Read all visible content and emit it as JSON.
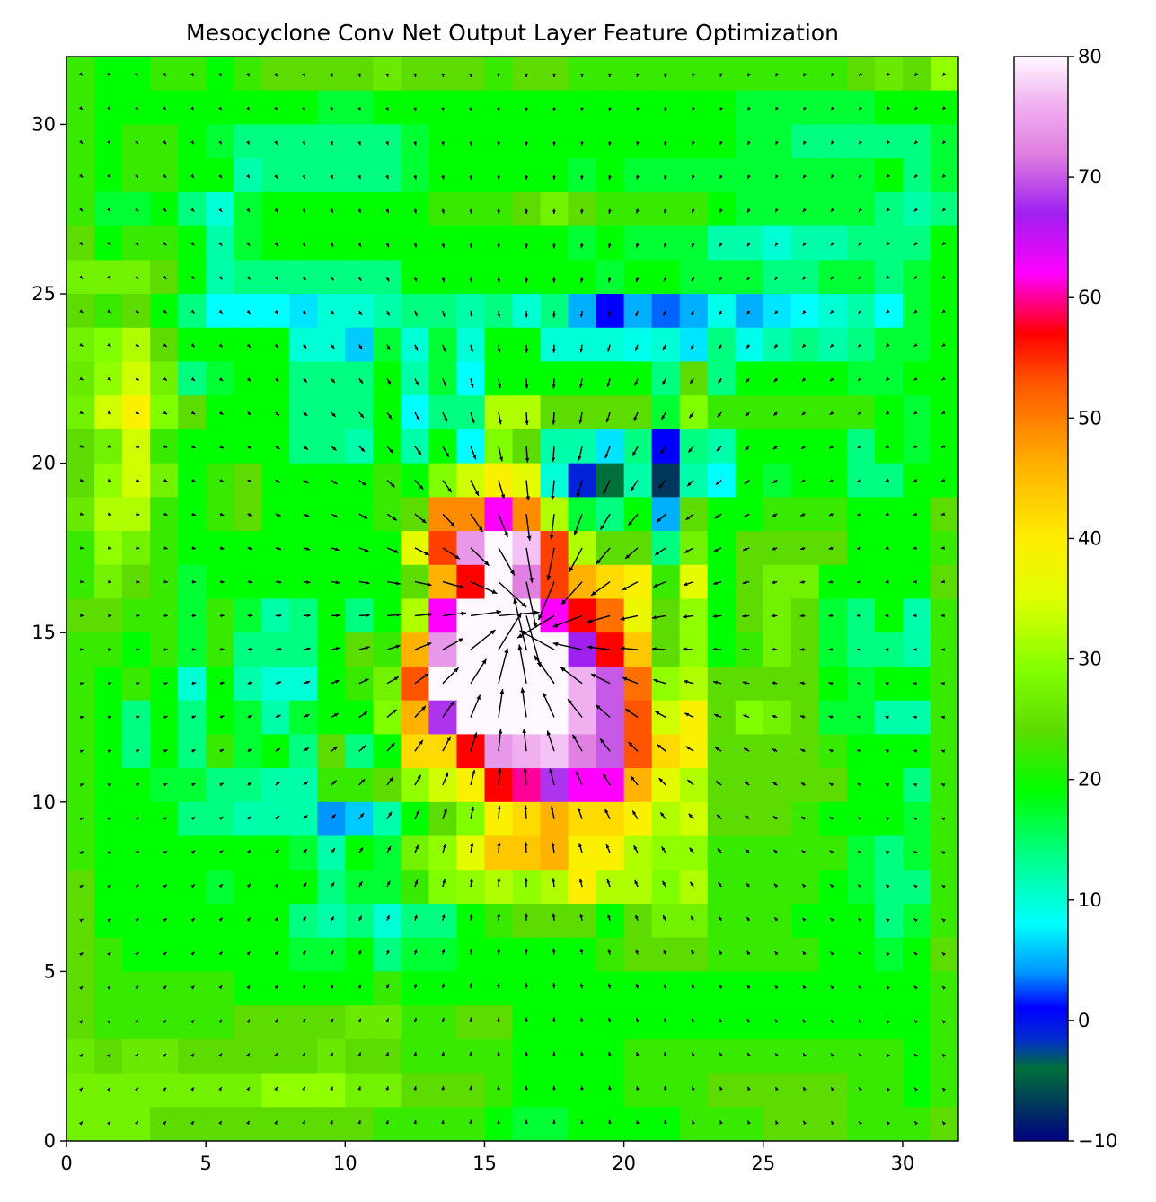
{
  "chart_data": {
    "type": "heatmap",
    "title": "Mesocyclone Conv Net Output Layer Feature Optimization",
    "xlabel": "",
    "ylabel": "",
    "xlim": [
      0,
      32
    ],
    "ylim": [
      0,
      32
    ],
    "x_ticks": [
      "0",
      "5",
      "10",
      "15",
      "20",
      "25",
      "30"
    ],
    "y_ticks": [
      "0",
      "5",
      "10",
      "15",
      "20",
      "25",
      "30"
    ],
    "grid": false,
    "legend": "none",
    "colorbar": {
      "range": [
        -10,
        80
      ],
      "ticks": [
        "−10",
        "0",
        "10",
        "20",
        "30",
        "40",
        "50",
        "60",
        "70",
        "80"
      ],
      "colormap": "gist_ncar",
      "stops": [
        {
          "v": -10,
          "color": "#000080"
        },
        {
          "v": -4,
          "color": "#00703a"
        },
        {
          "v": -1.5,
          "color": "#002ad0"
        },
        {
          "v": 1,
          "color": "#0000ff"
        },
        {
          "v": 4,
          "color": "#0096ff"
        },
        {
          "v": 8,
          "color": "#00ffff"
        },
        {
          "v": 14,
          "color": "#00ff80"
        },
        {
          "v": 19,
          "color": "#00ff00"
        },
        {
          "v": 24,
          "color": "#5cdc00"
        },
        {
          "v": 29,
          "color": "#80ff00"
        },
        {
          "v": 35,
          "color": "#dfff00"
        },
        {
          "v": 40,
          "color": "#ffee00"
        },
        {
          "v": 46,
          "color": "#ffb300"
        },
        {
          "v": 53,
          "color": "#ff5500"
        },
        {
          "v": 57,
          "color": "#ff0000"
        },
        {
          "v": 62,
          "color": "#ff00ff"
        },
        {
          "v": 67,
          "color": "#a020f0"
        },
        {
          "v": 72,
          "color": "#e080e0"
        },
        {
          "v": 76,
          "color": "#f0b0f0"
        },
        {
          "v": 80,
          "color": "#fff8ff"
        }
      ]
    },
    "grid_size": [
      32,
      32
    ],
    "values": [
      [
        22,
        19,
        19,
        22,
        22,
        19,
        22,
        24,
        24,
        24,
        24,
        26,
        24,
        24,
        24,
        22,
        24,
        24,
        22,
        22,
        22,
        22,
        22,
        22,
        22,
        22,
        22,
        22,
        24,
        26,
        24,
        30
      ],
      [
        22,
        19,
        19,
        19,
        19,
        19,
        19,
        19,
        19,
        17,
        17,
        19,
        19,
        19,
        19,
        19,
        19,
        19,
        19,
        19,
        19,
        19,
        19,
        19,
        17,
        17,
        17,
        17,
        17,
        19,
        19,
        19
      ],
      [
        22,
        19,
        22,
        22,
        19,
        17,
        14,
        14,
        14,
        14,
        14,
        14,
        17,
        19,
        19,
        19,
        19,
        19,
        19,
        19,
        19,
        19,
        19,
        19,
        17,
        17,
        14,
        14,
        14,
        14,
        14,
        17
      ],
      [
        22,
        19,
        22,
        22,
        19,
        19,
        12,
        14,
        14,
        14,
        14,
        14,
        17,
        19,
        19,
        19,
        19,
        19,
        17,
        19,
        17,
        17,
        17,
        17,
        17,
        17,
        17,
        17,
        17,
        19,
        14,
        17
      ],
      [
        22,
        17,
        17,
        19,
        14,
        10,
        17,
        19,
        19,
        19,
        19,
        19,
        19,
        22,
        22,
        22,
        24,
        27,
        24,
        22,
        22,
        22,
        22,
        19,
        17,
        17,
        17,
        17,
        17,
        14,
        12,
        14
      ],
      [
        24,
        19,
        22,
        22,
        19,
        12,
        17,
        19,
        19,
        19,
        19,
        19,
        19,
        19,
        19,
        19,
        19,
        19,
        17,
        19,
        17,
        17,
        17,
        12,
        12,
        10,
        12,
        12,
        14,
        14,
        14,
        19
      ],
      [
        27,
        27,
        27,
        24,
        19,
        12,
        14,
        14,
        14,
        14,
        14,
        14,
        19,
        19,
        19,
        19,
        19,
        19,
        19,
        17,
        19,
        19,
        17,
        17,
        17,
        14,
        14,
        17,
        17,
        14,
        17,
        19
      ],
      [
        24,
        22,
        24,
        19,
        14,
        8,
        8,
        8,
        7,
        10,
        10,
        12,
        14,
        14,
        12,
        14,
        10,
        14,
        5,
        1,
        5,
        3,
        5,
        9,
        5,
        7,
        8,
        10,
        12,
        8,
        17,
        19
      ],
      [
        27,
        29,
        32,
        24,
        19,
        19,
        19,
        19,
        10,
        10,
        6,
        17,
        10,
        17,
        10,
        19,
        19,
        10,
        10,
        10,
        9,
        10,
        7,
        14,
        9,
        12,
        14,
        12,
        14,
        17,
        17,
        19
      ],
      [
        26,
        30,
        34,
        27,
        14,
        17,
        19,
        19,
        14,
        14,
        14,
        19,
        12,
        17,
        8,
        19,
        19,
        19,
        19,
        19,
        19,
        14,
        24,
        14,
        19,
        19,
        19,
        19,
        17,
        17,
        19,
        19
      ],
      [
        27,
        34,
        39,
        29,
        24,
        19,
        19,
        19,
        14,
        14,
        14,
        19,
        8,
        14,
        14,
        32,
        32,
        24,
        24,
        24,
        24,
        17,
        29,
        22,
        22,
        22,
        22,
        22,
        22,
        19,
        17,
        19
      ],
      [
        24,
        27,
        34,
        22,
        19,
        19,
        19,
        19,
        14,
        14,
        12,
        19,
        12,
        19,
        8,
        29,
        24,
        12,
        12,
        7,
        14,
        1,
        14,
        12,
        19,
        19,
        19,
        19,
        14,
        19,
        17,
        19
      ],
      [
        24,
        30,
        34,
        27,
        19,
        22,
        24,
        19,
        19,
        19,
        19,
        22,
        19,
        29,
        34,
        39,
        36,
        10,
        -1,
        -4,
        12,
        -7,
        12,
        8,
        19,
        17,
        19,
        19,
        14,
        14,
        19,
        19
      ],
      [
        26,
        32,
        32,
        22,
        19,
        22,
        24,
        19,
        19,
        19,
        19,
        22,
        24,
        49,
        49,
        62,
        49,
        32,
        17,
        14,
        19,
        5,
        24,
        19,
        19,
        22,
        22,
        22,
        19,
        19,
        19,
        24
      ],
      [
        22,
        30,
        27,
        22,
        19,
        19,
        19,
        19,
        19,
        19,
        19,
        19,
        36,
        54,
        74,
        80,
        77,
        54,
        32,
        24,
        24,
        14,
        27,
        19,
        24,
        24,
        24,
        24,
        19,
        19,
        19,
        22
      ],
      [
        22,
        27,
        24,
        22,
        17,
        19,
        19,
        19,
        19,
        19,
        19,
        19,
        24,
        46,
        57,
        80,
        72,
        54,
        46,
        42,
        39,
        22,
        36,
        19,
        24,
        27,
        27,
        19,
        19,
        19,
        19,
        24
      ],
      [
        24,
        24,
        22,
        22,
        17,
        22,
        17,
        12,
        14,
        19,
        14,
        19,
        32,
        62,
        80,
        80,
        80,
        62,
        57,
        51,
        37,
        24,
        30,
        19,
        24,
        27,
        24,
        17,
        14,
        19,
        12,
        22
      ],
      [
        22,
        22,
        19,
        22,
        17,
        22,
        14,
        14,
        14,
        19,
        24,
        22,
        46,
        74,
        80,
        80,
        80,
        80,
        67,
        57,
        44,
        24,
        30,
        19,
        22,
        27,
        24,
        17,
        14,
        14,
        12,
        22
      ],
      [
        22,
        19,
        22,
        19,
        10,
        19,
        12,
        10,
        10,
        19,
        22,
        27,
        53,
        80,
        80,
        80,
        80,
        80,
        76,
        70,
        51,
        30,
        32,
        24,
        24,
        24,
        24,
        19,
        17,
        19,
        19,
        22
      ],
      [
        22,
        19,
        14,
        19,
        14,
        19,
        17,
        12,
        17,
        19,
        19,
        29,
        46,
        68,
        80,
        80,
        80,
        80,
        76,
        70,
        53,
        34,
        39,
        24,
        29,
        27,
        24,
        17,
        17,
        12,
        12,
        22
      ],
      [
        22,
        19,
        14,
        19,
        14,
        22,
        17,
        19,
        14,
        24,
        14,
        19,
        42,
        42,
        57,
        74,
        76,
        77,
        72,
        70,
        53,
        42,
        39,
        24,
        24,
        24,
        24,
        22,
        19,
        19,
        19,
        22
      ],
      [
        22,
        19,
        19,
        17,
        17,
        14,
        14,
        12,
        12,
        22,
        22,
        24,
        30,
        34,
        39,
        57,
        60,
        68,
        62,
        62,
        46,
        36,
        32,
        24,
        24,
        24,
        24,
        24,
        19,
        19,
        14,
        22
      ],
      [
        22,
        19,
        19,
        19,
        14,
        14,
        12,
        12,
        12,
        4,
        6,
        12,
        19,
        24,
        29,
        39,
        42,
        46,
        42,
        42,
        39,
        32,
        34,
        24,
        24,
        24,
        22,
        19,
        19,
        19,
        17,
        22
      ],
      [
        22,
        19,
        19,
        19,
        19,
        19,
        19,
        19,
        17,
        12,
        19,
        17,
        27,
        30,
        36,
        44,
        44,
        46,
        39,
        39,
        32,
        30,
        30,
        22,
        22,
        22,
        22,
        22,
        17,
        14,
        17,
        22
      ],
      [
        24,
        19,
        19,
        19,
        19,
        17,
        19,
        19,
        19,
        14,
        17,
        17,
        22,
        29,
        30,
        32,
        30,
        32,
        40,
        32,
        32,
        29,
        32,
        22,
        22,
        22,
        22,
        19,
        17,
        14,
        14,
        22
      ],
      [
        24,
        19,
        19,
        19,
        19,
        19,
        19,
        19,
        14,
        12,
        14,
        10,
        14,
        14,
        19,
        22,
        24,
        24,
        24,
        19,
        24,
        27,
        27,
        22,
        22,
        22,
        19,
        19,
        19,
        14,
        17,
        22
      ],
      [
        24,
        22,
        19,
        19,
        19,
        19,
        19,
        19,
        17,
        17,
        19,
        14,
        17,
        17,
        19,
        19,
        19,
        19,
        19,
        22,
        24,
        24,
        24,
        22,
        22,
        22,
        22,
        19,
        19,
        17,
        19,
        24
      ],
      [
        24,
        22,
        22,
        22,
        22,
        22,
        19,
        19,
        19,
        19,
        19,
        22,
        19,
        19,
        19,
        19,
        19,
        19,
        19,
        19,
        19,
        19,
        19,
        19,
        19,
        19,
        19,
        19,
        19,
        19,
        19,
        22
      ],
      [
        24,
        22,
        22,
        22,
        22,
        22,
        24,
        24,
        24,
        24,
        26,
        26,
        22,
        22,
        24,
        24,
        19,
        19,
        19,
        19,
        19,
        19,
        19,
        19,
        19,
        19,
        19,
        19,
        19,
        19,
        19,
        22
      ],
      [
        26,
        24,
        26,
        26,
        24,
        24,
        24,
        24,
        24,
        26,
        24,
        24,
        22,
        22,
        22,
        22,
        19,
        19,
        19,
        19,
        22,
        22,
        22,
        22,
        22,
        22,
        22,
        22,
        22,
        22,
        19,
        22
      ],
      [
        27,
        27,
        27,
        27,
        27,
        27,
        27,
        30,
        30,
        30,
        27,
        27,
        24,
        24,
        24,
        22,
        19,
        19,
        19,
        19,
        22,
        22,
        22,
        24,
        24,
        24,
        24,
        24,
        22,
        22,
        19,
        22
      ],
      [
        27,
        27,
        27,
        24,
        24,
        24,
        24,
        24,
        24,
        24,
        24,
        22,
        22,
        22,
        22,
        19,
        17,
        17,
        19,
        19,
        19,
        19,
        22,
        22,
        22,
        24,
        24,
        24,
        22,
        22,
        22,
        24
      ]
    ],
    "vector_field": {
      "center": [
        16.5,
        15.3
      ],
      "strength": 4.2,
      "arrow_color": "#000000"
    }
  }
}
